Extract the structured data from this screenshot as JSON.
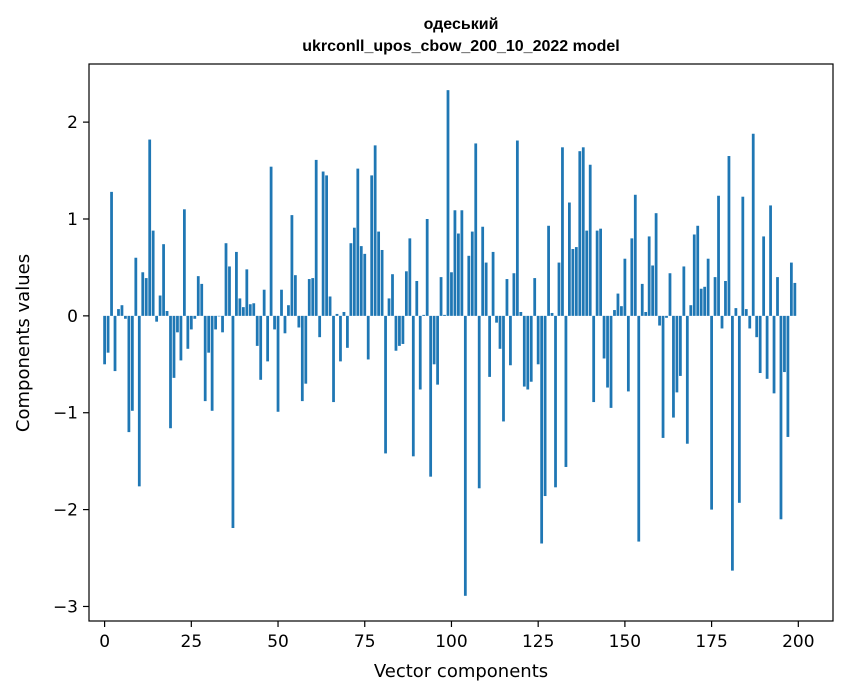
{
  "chart_data": {
    "type": "bar",
    "title_line1": "одеський",
    "title_line2": "ukrconll_upos_cbow_200_10_2022 model",
    "xlabel": "Vector components",
    "ylabel": "Components values",
    "xlim": [
      -4.5,
      210.0
    ],
    "ylim": [
      -3.15,
      2.6
    ],
    "xticks": [
      0,
      25,
      50,
      75,
      100,
      125,
      150,
      175,
      200
    ],
    "xtick_labels": [
      "0",
      "25",
      "50",
      "75",
      "100",
      "125",
      "150",
      "175",
      "200"
    ],
    "yticks": [
      -3,
      -2,
      -1,
      0,
      1,
      2
    ],
    "ytick_labels": [
      "−3",
      "−2",
      "−1",
      "0",
      "1",
      "2"
    ],
    "bar_color": "#1f77b4",
    "x": [
      0,
      1,
      2,
      3,
      4,
      5,
      6,
      7,
      8,
      9,
      10,
      11,
      12,
      13,
      14,
      15,
      16,
      17,
      18,
      19,
      20,
      21,
      22,
      23,
      24,
      25,
      26,
      27,
      28,
      29,
      30,
      31,
      32,
      33,
      34,
      35,
      36,
      37,
      38,
      39,
      40,
      41,
      42,
      43,
      44,
      45,
      46,
      47,
      48,
      49,
      50,
      51,
      52,
      53,
      54,
      55,
      56,
      57,
      58,
      59,
      60,
      61,
      62,
      63,
      64,
      65,
      66,
      67,
      68,
      69,
      70,
      71,
      72,
      73,
      74,
      75,
      76,
      77,
      78,
      79,
      80,
      81,
      82,
      83,
      84,
      85,
      86,
      87,
      88,
      89,
      90,
      91,
      92,
      93,
      94,
      95,
      96,
      97,
      98,
      99,
      100,
      101,
      102,
      103,
      104,
      105,
      106,
      107,
      108,
      109,
      110,
      111,
      112,
      113,
      114,
      115,
      116,
      117,
      118,
      119,
      120,
      121,
      122,
      123,
      124,
      125,
      126,
      127,
      128,
      129,
      130,
      131,
      132,
      133,
      134,
      135,
      136,
      137,
      138,
      139,
      140,
      141,
      142,
      143,
      144,
      145,
      146,
      147,
      148,
      149,
      150,
      151,
      152,
      153,
      154,
      155,
      156,
      157,
      158,
      159,
      160,
      161,
      162,
      163,
      164,
      165,
      166,
      167,
      168,
      169,
      170,
      171,
      172,
      173,
      174,
      175,
      176,
      177,
      178,
      179,
      180,
      181,
      182,
      183,
      184,
      185,
      186,
      187,
      188,
      189,
      190,
      191,
      192,
      193,
      194,
      195,
      196,
      197,
      198,
      199
    ],
    "values": [
      -0.5,
      -0.38,
      1.28,
      -0.57,
      0.07,
      0.11,
      -0.03,
      -1.2,
      -0.98,
      0.6,
      -1.76,
      0.45,
      0.39,
      1.82,
      0.88,
      -0.06,
      0.21,
      0.74,
      0.05,
      -1.16,
      -0.64,
      -0.17,
      -0.46,
      1.1,
      -0.34,
      -0.14,
      -0.03,
      0.41,
      0.33,
      -0.88,
      -0.38,
      -0.98,
      -0.14,
      0.0,
      -0.17,
      0.75,
      0.51,
      -2.19,
      0.66,
      0.18,
      0.09,
      0.48,
      0.12,
      0.13,
      -0.31,
      -0.66,
      0.27,
      -0.47,
      1.54,
      -0.14,
      -0.99,
      0.27,
      -0.18,
      0.11,
      1.04,
      0.42,
      -0.12,
      -0.88,
      -0.7,
      0.38,
      0.39,
      1.61,
      -0.22,
      1.49,
      1.45,
      0.2,
      -0.89,
      0.02,
      -0.47,
      0.04,
      -0.33,
      0.75,
      0.91,
      1.52,
      0.72,
      0.64,
      -0.45,
      1.45,
      1.76,
      0.87,
      0.68,
      -1.42,
      0.18,
      0.43,
      -0.36,
      -0.31,
      -0.29,
      0.46,
      0.8,
      -1.45,
      0.36,
      -0.76,
      0.01,
      1.0,
      -1.66,
      -0.5,
      -0.71,
      0.4,
      0.01,
      2.33,
      0.45,
      1.09,
      0.85,
      1.09,
      -2.89,
      0.62,
      0.87,
      1.78,
      -1.78,
      0.92,
      0.55,
      -0.63,
      0.66,
      -0.07,
      -0.34,
      -1.09,
      0.38,
      -0.51,
      0.44,
      1.81,
      0.04,
      -0.73,
      -0.76,
      -0.68,
      0.39,
      -0.5,
      -2.35,
      -1.86,
      0.93,
      0.03,
      -1.77,
      0.55,
      1.74,
      -1.56,
      1.17,
      0.69,
      0.71,
      1.7,
      1.74,
      0.88,
      1.56,
      -0.89,
      0.88,
      0.9,
      -0.44,
      -0.74,
      -0.95,
      0.06,
      0.23,
      0.1,
      0.59,
      -0.78,
      0.8,
      1.25,
      -2.33,
      0.33,
      0.04,
      0.82,
      0.52,
      1.06,
      -0.1,
      -1.26,
      -0.02,
      0.44,
      -1.05,
      -0.79,
      -0.62,
      0.51,
      -1.32,
      0.11,
      0.84,
      0.93,
      0.28,
      0.3,
      0.59,
      -2.0,
      0.4,
      1.24,
      -0.13,
      0.36,
      1.65,
      -2.63,
      0.08,
      -1.93,
      1.23,
      0.07,
      -0.13,
      1.88,
      -0.22,
      -0.59,
      0.82,
      -0.65,
      1.14,
      -0.8,
      0.4,
      -2.1,
      -0.58,
      -1.25,
      0.55,
      0.34
    ]
  }
}
